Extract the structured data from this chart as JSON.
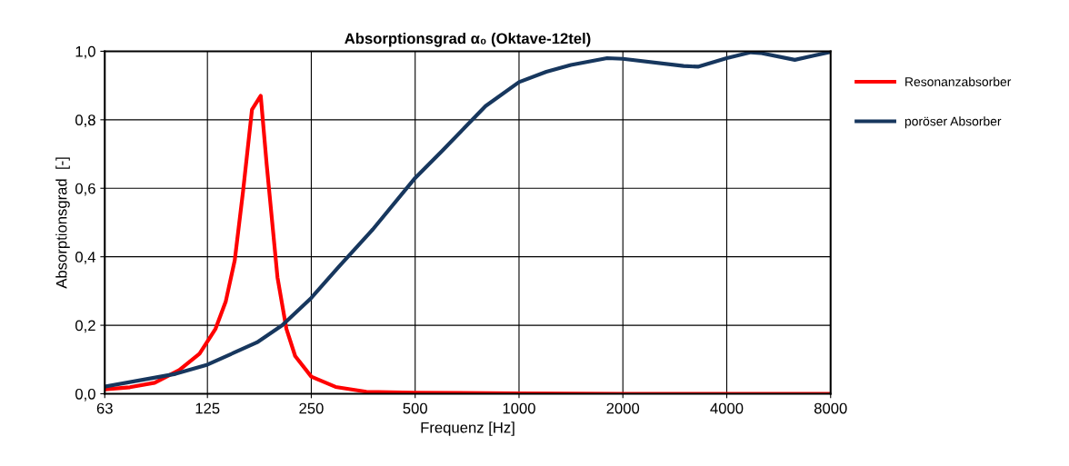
{
  "chart_data": {
    "type": "line",
    "title": "Absorptionsgrad α₀ (Oktave-12tel)",
    "xlabel": "Frequenz [Hz]",
    "ylabel": "Absorptionsgrad  [-]",
    "log": "x",
    "xlim": [
      63,
      8000
    ],
    "xticks": [
      63,
      125,
      250,
      500,
      1000,
      2000,
      4000,
      8000
    ],
    "ylim": [
      0,
      1
    ],
    "yticks": [
      {
        "value": 0,
        "label": "0,0"
      },
      {
        "value": 0.2,
        "label": "0,2"
      },
      {
        "value": 0.4,
        "label": "0,4"
      },
      {
        "value": 0.6,
        "label": "0,6"
      },
      {
        "value": 0.8,
        "label": "0,8"
      },
      {
        "value": 1,
        "label": "1,0"
      }
    ],
    "grid": true,
    "legend": "right",
    "marker": "none",
    "line_style": "solid",
    "series": [
      {
        "name": "Resonanzabsorber",
        "color": "#ff0000",
        "x": [
          63,
          74.5,
          87.9,
          103.6,
          118.6,
          132,
          141.3,
          150,
          158.5,
          168.3,
          178.4,
          185.6,
          199.5,
          211.7,
          224.5,
          250,
          294,
          361,
          500,
          1000,
          2000,
          4000,
          8000
        ],
        "values": [
          0.013,
          0.019,
          0.032,
          0.069,
          0.117,
          0.19,
          0.27,
          0.39,
          0.59,
          0.83,
          0.87,
          0.67,
          0.34,
          0.19,
          0.11,
          0.05,
          0.02,
          0.006,
          0.003,
          0.001,
          0,
          0,
          0
        ]
      },
      {
        "name": "poröser Absorber",
        "color": "#17375e",
        "x": [
          63,
          101,
          125,
          174,
          206,
          250,
          300,
          377,
          500,
          600,
          800,
          1000,
          1200,
          1414,
          1800,
          2000,
          3000,
          3300,
          4000,
          4700,
          5000,
          6300,
          7000,
          8000
        ],
        "values": [
          0.021,
          0.058,
          0.085,
          0.15,
          0.2,
          0.28,
          0.37,
          0.48,
          0.63,
          0.71,
          0.84,
          0.91,
          0.94,
          0.96,
          0.98,
          0.978,
          0.957,
          0.955,
          0.98,
          0.997,
          0.995,
          0.975,
          0.985,
          0.998
        ]
      }
    ]
  }
}
